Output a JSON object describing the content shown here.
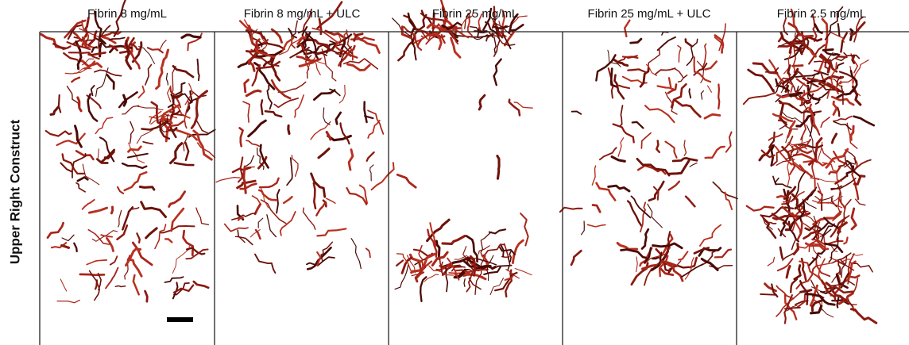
{
  "column_titles": [
    "Fibrin 8 mg/mL",
    "Fibrin 8 mg/mL + ULC",
    "Fibrin 25 mg/mL",
    "Fibrin 25 mg/mL + ULC",
    "Fibrin 2.5 mg/mL"
  ],
  "row_label": "Upper Right Construct"
}
